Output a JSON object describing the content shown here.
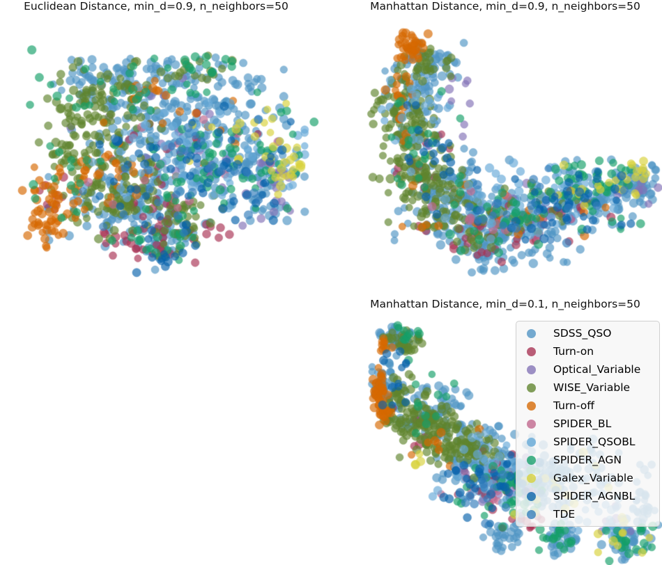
{
  "figure": {
    "background": "#ffffff",
    "plots_visible": 3,
    "axes_visible": false
  },
  "series": [
    {
      "key": "SDSS_QSO",
      "label": "SDSS_QSO",
      "color": "#4F94C4"
    },
    {
      "key": "Turn-on",
      "label": "Turn-on",
      "color": "#A83253"
    },
    {
      "key": "Optical_Variable",
      "label": "Optical_Variable",
      "color": "#8372B6"
    },
    {
      "key": "WISE_Variable",
      "label": "WISE_Variable",
      "color": "#5F842D"
    },
    {
      "key": "Turn-off",
      "label": "Turn-off",
      "color": "#D66801"
    },
    {
      "key": "SPIDER_BL",
      "label": "SPIDER_BL",
      "color": "#C0658C"
    },
    {
      "key": "SPIDER_QSOBL",
      "label": "SPIDER_QSOBL",
      "color": "#65A9D7"
    },
    {
      "key": "SPIDER_AGN",
      "label": "SPIDER_AGN",
      "color": "#159F69"
    },
    {
      "key": "Galex_Variable",
      "label": "Galex_Variable",
      "color": "#D7D139"
    },
    {
      "key": "SPIDER_AGNBL",
      "label": "SPIDER_AGNBL",
      "color": "#0862AB"
    },
    {
      "key": "TDE",
      "label": "TDE",
      "color": "#327CBB"
    }
  ],
  "legend": {
    "position": "upper-right-of-third-subplot",
    "frame_color": "#cfcfcf",
    "background": "#f7f7f7",
    "items": [
      "SDSS_QSO",
      "Turn-on",
      "Optical_Variable",
      "WISE_Variable",
      "Turn-off",
      "SPIDER_BL",
      "SPIDER_QSOBL",
      "SPIDER_AGN",
      "Galex_Variable",
      "SPIDER_AGNBL",
      "TDE"
    ]
  },
  "style": {
    "point_alpha": 0.66,
    "point_stroke_alpha": 0.45,
    "point_radius_min": 4.9,
    "point_radius_max": 6.4
  },
  "chart_data": [
    {
      "type": "scatter",
      "title": "Euclidean Distance, min_d=0.9, n_neighbors=50",
      "xlabel": "",
      "ylabel": "",
      "grid": false,
      "seed": 7,
      "clusters": [
        [
          "SDSS_QSO",
          255,
          118,
          145,
          60,
          150
        ],
        [
          "SDSS_QSO",
          290,
          205,
          140,
          78,
          160
        ],
        [
          "SDSS_QSO",
          185,
          265,
          110,
          62,
          90
        ],
        [
          "SDSS_QSO",
          385,
          215,
          52,
          62,
          55
        ],
        [
          "SDSS_QSO",
          235,
          318,
          52,
          42,
          45
        ],
        [
          "SDSS_QSO",
          230,
          72,
          120,
          28,
          45
        ],
        [
          "SDSS_QSO",
          150,
          90,
          70,
          30,
          25
        ],
        [
          "Turn-on",
          240,
          295,
          85,
          50,
          36
        ],
        [
          "Turn-on",
          265,
          190,
          100,
          55,
          16
        ],
        [
          "Turn-on",
          175,
          312,
          30,
          28,
          12
        ],
        [
          "Turn-on",
          80,
          255,
          35,
          42,
          8
        ],
        [
          "Optical_Variable",
          300,
          205,
          125,
          85,
          22
        ],
        [
          "Optical_Variable",
          402,
          240,
          26,
          42,
          12
        ],
        [
          "Optical_Variable",
          185,
          140,
          80,
          55,
          7
        ],
        [
          "WISE_Variable",
          150,
          130,
          78,
          68,
          105
        ],
        [
          "WISE_Variable",
          165,
          245,
          70,
          65,
          95
        ],
        [
          "WISE_Variable",
          255,
          295,
          62,
          42,
          45
        ],
        [
          "WISE_Variable",
          280,
          75,
          60,
          24,
          18
        ],
        [
          "WISE_Variable",
          95,
          195,
          45,
          48,
          25
        ],
        [
          "Turn-off",
          72,
          265,
          38,
          58,
          55
        ],
        [
          "Turn-off",
          140,
          228,
          55,
          52,
          20
        ],
        [
          "Turn-off",
          210,
          90,
          40,
          22,
          8
        ],
        [
          "Turn-off",
          250,
          180,
          130,
          90,
          18
        ],
        [
          "SPIDER_BL",
          260,
          225,
          135,
          85,
          14
        ],
        [
          "SPIDER_QSOBL",
          285,
          195,
          145,
          95,
          65
        ],
        [
          "SPIDER_AGN",
          330,
          195,
          115,
          88,
          65
        ],
        [
          "SPIDER_AGN",
          160,
          110,
          115,
          65,
          28
        ],
        [
          "SPIDER_AGN",
          245,
          315,
          80,
          40,
          18
        ],
        [
          "SPIDER_AGN",
          100,
          220,
          60,
          60,
          14
        ],
        [
          "SPIDER_AGN",
          285,
          70,
          60,
          22,
          12
        ],
        [
          "Galex_Variable",
          408,
          205,
          26,
          46,
          22
        ],
        [
          "Galex_Variable",
          375,
          140,
          40,
          25,
          9
        ],
        [
          "Galex_Variable",
          305,
          185,
          75,
          55,
          5
        ],
        [
          "SPIDER_AGNBL",
          290,
          215,
          140,
          88,
          55
        ],
        [
          "SPIDER_AGNBL",
          230,
          330,
          48,
          38,
          14
        ],
        [
          "TDE",
          260,
          205,
          145,
          95,
          28
        ]
      ]
    },
    {
      "type": "scatter",
      "title": "Manhattan Distance, min_d=0.9, n_neighbors=50",
      "xlabel": "",
      "ylabel": "",
      "grid": false,
      "seed": 11,
      "clusters": [
        [
          "SDSS_QSO",
          120,
          115,
          48,
          80,
          75
        ],
        [
          "SDSS_QSO",
          175,
          255,
          80,
          68,
          105
        ],
        [
          "SDSS_QSO",
          270,
          290,
          85,
          55,
          105
        ],
        [
          "SDSS_QSO",
          375,
          250,
          70,
          48,
          85
        ],
        [
          "SDSS_QSO",
          443,
          235,
          30,
          28,
          40
        ],
        [
          "SDSS_QSO",
          150,
          55,
          42,
          25,
          28
        ],
        [
          "SDSS_QSO",
          230,
          330,
          60,
          30,
          45
        ],
        [
          "Turn-on",
          210,
          310,
          80,
          42,
          28
        ],
        [
          "Turn-on",
          130,
          200,
          38,
          55,
          12
        ],
        [
          "Turn-on",
          330,
          285,
          70,
          32,
          10
        ],
        [
          "Optical_Variable",
          280,
          265,
          100,
          55,
          18
        ],
        [
          "Optical_Variable",
          185,
          120,
          60,
          60,
          9
        ],
        [
          "Optical_Variable",
          440,
          240,
          28,
          24,
          8
        ],
        [
          "WISE_Variable",
          105,
          145,
          45,
          78,
          100
        ],
        [
          "WISE_Variable",
          140,
          230,
          55,
          62,
          85
        ],
        [
          "WISE_Variable",
          200,
          285,
          68,
          42,
          48
        ],
        [
          "WISE_Variable",
          135,
          62,
          40,
          28,
          25
        ],
        [
          "WISE_Variable",
          285,
          275,
          80,
          40,
          18
        ],
        [
          "Turn-off",
          112,
          38,
          26,
          20,
          40
        ],
        [
          "Turn-off",
          98,
          115,
          24,
          55,
          16
        ],
        [
          "Turn-off",
          185,
          275,
          80,
          48,
          12
        ],
        [
          "Turn-off",
          310,
          280,
          85,
          38,
          8
        ],
        [
          "SPIDER_BL",
          250,
          285,
          100,
          48,
          12
        ],
        [
          "SPIDER_QSOBL",
          285,
          265,
          115,
          58,
          55
        ],
        [
          "SPIDER_QSOBL",
          120,
          140,
          45,
          75,
          18
        ],
        [
          "SPIDER_AGN",
          355,
          245,
          85,
          52,
          55
        ],
        [
          "SPIDER_AGN",
          255,
          290,
          80,
          48,
          28
        ],
        [
          "SPIDER_AGN",
          135,
          180,
          48,
          75,
          22
        ],
        [
          "Galex_Variable",
          438,
          228,
          32,
          28,
          16
        ],
        [
          "Galex_Variable",
          360,
          240,
          55,
          32,
          9
        ],
        [
          "SPIDER_AGNBL",
          320,
          260,
          105,
          52,
          45
        ],
        [
          "SPIDER_AGNBL",
          150,
          200,
          55,
          75,
          18
        ],
        [
          "TDE",
          300,
          270,
          115,
          55,
          24
        ]
      ]
    },
    {
      "type": "scatter",
      "title": "Manhattan Distance, min_d=0.1, n_neighbors=50",
      "xlabel": "",
      "ylabel": "",
      "grid": false,
      "seed": 13,
      "clusters": [
        [
          "SDSS_QSO",
          95,
          32,
          28,
          22,
          35
        ],
        [
          "SDSS_QSO",
          80,
          105,
          20,
          45,
          45
        ],
        [
          "SDSS_QSO",
          150,
          150,
          50,
          45,
          70
        ],
        [
          "SDSS_QSO",
          220,
          215,
          65,
          50,
          110
        ],
        [
          "SDSS_QSO",
          290,
          245,
          55,
          40,
          80
        ],
        [
          "SDSS_QSO",
          350,
          225,
          60,
          50,
          50
        ],
        [
          "SDSS_QSO",
          330,
          325,
          28,
          22,
          30
        ],
        [
          "SDSS_QSO",
          425,
          325,
          35,
          28,
          45
        ],
        [
          "SDSS_QSO",
          450,
          265,
          25,
          45,
          25
        ],
        [
          "SDSS_QSO",
          250,
          320,
          30,
          22,
          30
        ],
        [
          "Turn-on",
          230,
          240,
          60,
          40,
          20
        ],
        [
          "Turn-on",
          280,
          300,
          40,
          25,
          10
        ],
        [
          "Turn-on",
          120,
          170,
          30,
          40,
          6
        ],
        [
          "Optical_Variable",
          250,
          250,
          70,
          45,
          12
        ],
        [
          "Optical_Variable",
          420,
          300,
          30,
          25,
          5
        ],
        [
          "WISE_Variable",
          100,
          42,
          25,
          18,
          20
        ],
        [
          "WISE_Variable",
          95,
          130,
          25,
          40,
          40
        ],
        [
          "WISE_Variable",
          140,
          160,
          45,
          45,
          90
        ],
        [
          "WISE_Variable",
          190,
          195,
          50,
          40,
          70
        ],
        [
          "WISE_Variable",
          120,
          45,
          25,
          20,
          12
        ],
        [
          "Turn-off",
          78,
          42,
          10,
          12,
          10
        ],
        [
          "Turn-off",
          70,
          110,
          11,
          30,
          40
        ],
        [
          "Turn-off",
          75,
          145,
          10,
          15,
          12
        ],
        [
          "Turn-off",
          150,
          200,
          60,
          50,
          8
        ],
        [
          "SPIDER_BL",
          230,
          255,
          70,
          40,
          10
        ],
        [
          "SPIDER_QSOBL",
          230,
          230,
          80,
          55,
          45
        ],
        [
          "SPIDER_QSOBL",
          380,
          280,
          60,
          45,
          25
        ],
        [
          "SPIDER_AGN",
          105,
          30,
          22,
          15,
          10
        ],
        [
          "SPIDER_AGN",
          250,
          260,
          70,
          45,
          40
        ],
        [
          "SPIDER_AGN",
          330,
          325,
          30,
          22,
          18
        ],
        [
          "SPIDER_AGN",
          425,
          330,
          35,
          25,
          20
        ],
        [
          "SPIDER_AGN",
          140,
          120,
          35,
          50,
          12
        ],
        [
          "Galex_Variable",
          300,
          270,
          50,
          35,
          8
        ],
        [
          "Galex_Variable",
          420,
          320,
          35,
          25,
          10
        ],
        [
          "Galex_Variable",
          360,
          230,
          50,
          40,
          6
        ],
        [
          "Galex_Variable",
          120,
          210,
          25,
          20,
          4
        ],
        [
          "SPIDER_AGNBL",
          240,
          250,
          80,
          50,
          35
        ],
        [
          "SPIDER_AGNBL",
          100,
          90,
          25,
          40,
          12
        ],
        [
          "TDE",
          240,
          250,
          80,
          50,
          18
        ]
      ]
    }
  ]
}
